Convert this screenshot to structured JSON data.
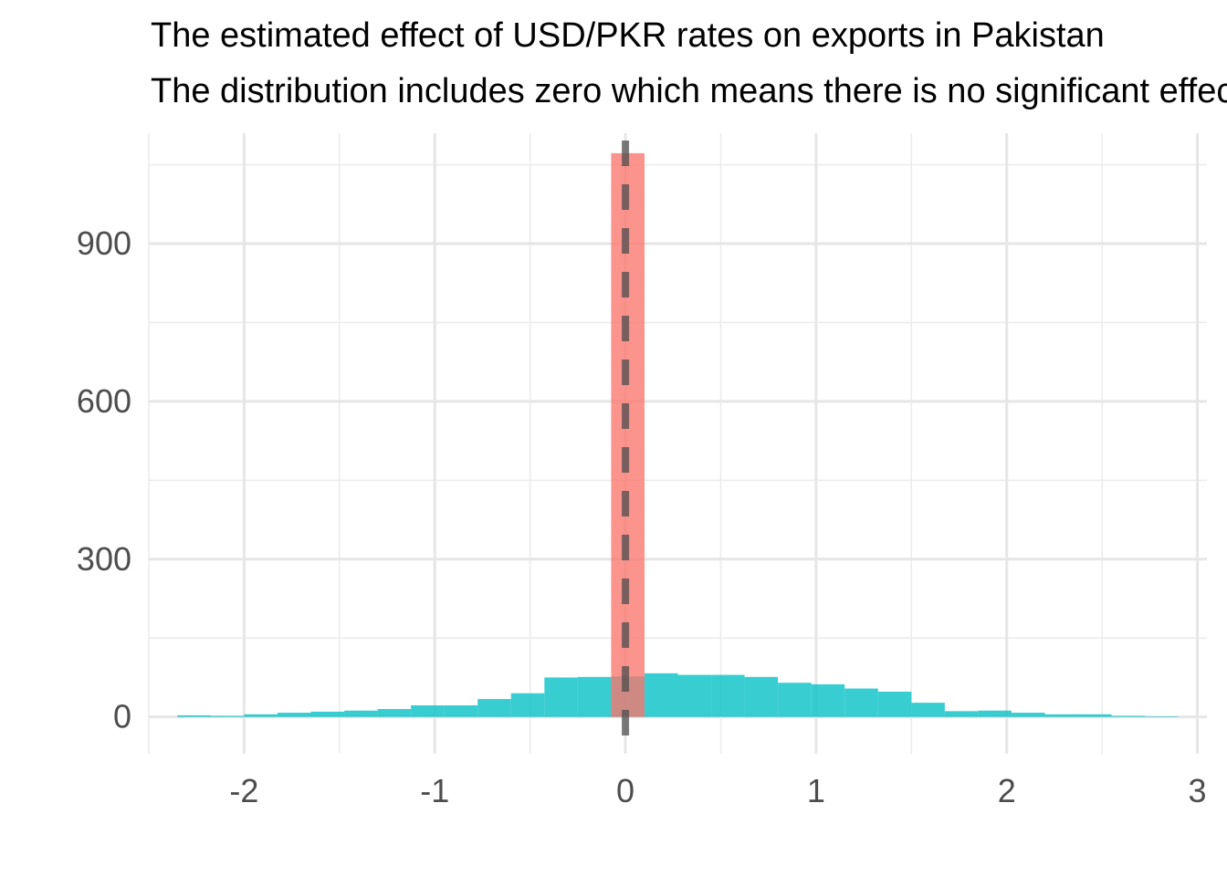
{
  "chart_data": {
    "type": "bar",
    "title": "The estimated effect of USD/PKR rates on exports in Pakistan",
    "subtitle": "The distribution includes zero which means there is no significant effect",
    "xlabel": "",
    "ylabel": "",
    "xlim": [
      -2.5,
      3.05
    ],
    "ylim": [
      -70,
      1110
    ],
    "x_ticks": [
      -2,
      -1,
      0,
      1,
      2,
      3
    ],
    "y_ticks": [
      0,
      300,
      600,
      900
    ],
    "grid": true,
    "legend": "none",
    "reference_line": {
      "x": 0,
      "style": "dashed",
      "color": "#4d4d4d"
    },
    "colors": {
      "series_1": "#00BFC4",
      "series_2": "#F8766D"
    },
    "series": [
      {
        "bin_width": 0.175,
        "color": "#00BFC4",
        "bins": [
          {
            "x0": -2.35,
            "x1": -2.175,
            "count": 3
          },
          {
            "x0": -2.175,
            "x1": -2.0,
            "count": 2
          },
          {
            "x0": -2.0,
            "x1": -1.825,
            "count": 5
          },
          {
            "x0": -1.825,
            "x1": -1.65,
            "count": 8
          },
          {
            "x0": -1.65,
            "x1": -1.475,
            "count": 10
          },
          {
            "x0": -1.475,
            "x1": -1.3,
            "count": 12
          },
          {
            "x0": -1.3,
            "x1": -1.125,
            "count": 15
          },
          {
            "x0": -1.125,
            "x1": -0.95,
            "count": 22
          },
          {
            "x0": -0.95,
            "x1": -0.775,
            "count": 22
          },
          {
            "x0": -0.775,
            "x1": -0.6,
            "count": 34
          },
          {
            "x0": -0.6,
            "x1": -0.425,
            "count": 45
          },
          {
            "x0": -0.425,
            "x1": -0.25,
            "count": 75
          },
          {
            "x0": -0.25,
            "x1": -0.075,
            "count": 76
          },
          {
            "x0": -0.075,
            "x1": 0.1,
            "count": 77
          },
          {
            "x0": 0.1,
            "x1": 0.275,
            "count": 83
          },
          {
            "x0": 0.275,
            "x1": 0.45,
            "count": 80
          },
          {
            "x0": 0.45,
            "x1": 0.625,
            "count": 80
          },
          {
            "x0": 0.625,
            "x1": 0.8,
            "count": 76
          },
          {
            "x0": 0.8,
            "x1": 0.975,
            "count": 65
          },
          {
            "x0": 0.975,
            "x1": 1.15,
            "count": 62
          },
          {
            "x0": 1.15,
            "x1": 1.325,
            "count": 54
          },
          {
            "x0": 1.325,
            "x1": 1.5,
            "count": 48
          },
          {
            "x0": 1.5,
            "x1": 1.675,
            "count": 27
          },
          {
            "x0": 1.675,
            "x1": 1.85,
            "count": 11
          },
          {
            "x0": 1.85,
            "x1": 2.025,
            "count": 12
          },
          {
            "x0": 2.025,
            "x1": 2.2,
            "count": 8
          },
          {
            "x0": 2.2,
            "x1": 2.375,
            "count": 5
          },
          {
            "x0": 2.375,
            "x1": 2.55,
            "count": 5
          },
          {
            "x0": 2.55,
            "x1": 2.725,
            "count": 2
          },
          {
            "x0": 2.725,
            "x1": 2.9,
            "count": 1
          }
        ]
      },
      {
        "bin_width": 0.175,
        "color": "#F8766D",
        "bins": [
          {
            "x0": -0.075,
            "x1": 0.1,
            "count": 1072
          }
        ]
      }
    ]
  }
}
